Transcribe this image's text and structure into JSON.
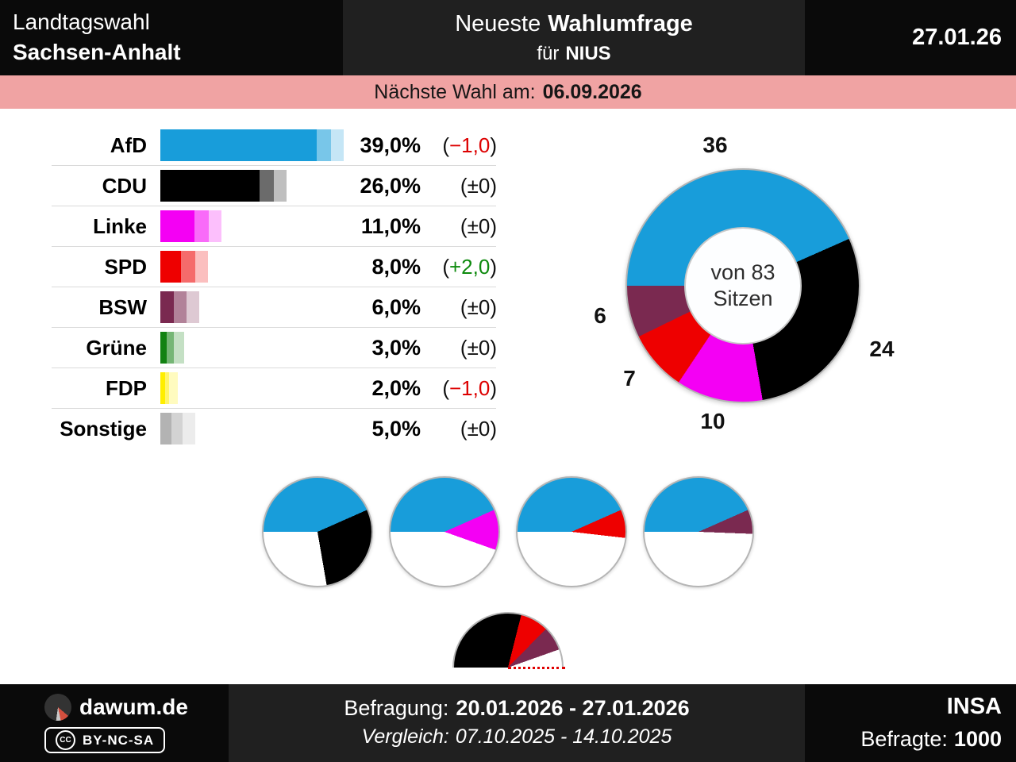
{
  "header": {
    "region_line1": "Landtagswahl",
    "region_line2": "Sachsen-Anhalt",
    "center_prefix": "Neueste",
    "center_bold": "Wahlumfrage",
    "sub_prefix": "für",
    "sub_bold": "NIUS",
    "date": "27.01.26"
  },
  "banner": {
    "label": "Nächste Wahl am:",
    "date": "06.09.2026"
  },
  "chart_data": [
    {
      "type": "bar",
      "categories": [
        "AfD",
        "CDU",
        "Linke",
        "SPD",
        "BSW",
        "Grüne",
        "FDP",
        "Sonstige"
      ],
      "values": [
        39.0,
        26.0,
        11.0,
        8.0,
        6.0,
        3.0,
        2.0,
        5.0
      ],
      "value_labels": [
        "39,0%",
        "26,0%",
        "11,0%",
        "8,0%",
        "6,0%",
        "3,0%",
        "2,0%",
        "5,0%"
      ],
      "changes": [
        {
          "open": "(",
          "value": "−1,0",
          "close": ")",
          "sign": "negative"
        },
        {
          "open": "(",
          "value": "±0",
          "close": ")",
          "sign": "neutral"
        },
        {
          "open": "(",
          "value": "±0",
          "close": ")",
          "sign": "neutral"
        },
        {
          "open": "(",
          "value": "+2,0",
          "close": ")",
          "sign": "positive"
        },
        {
          "open": "(",
          "value": "±0",
          "close": ")",
          "sign": "neutral"
        },
        {
          "open": "(",
          "value": "±0",
          "close": ")",
          "sign": "neutral"
        },
        {
          "open": "(",
          "value": "−1,0",
          "close": ")",
          "sign": "negative"
        },
        {
          "open": "(",
          "value": "±0",
          "close": ")",
          "sign": "neutral"
        }
      ],
      "colors": [
        "#189dda",
        "#000000",
        "#f400f4",
        "#ee0000",
        "#7a2950",
        "#128212",
        "#ffee00",
        "#b3b3b3"
      ],
      "xlim": [
        0,
        40
      ]
    },
    {
      "type": "donut",
      "center_lines": [
        "von 83",
        "Sitzen"
      ],
      "total_seats": 83,
      "parties": [
        "AfD",
        "CDU",
        "Linke",
        "SPD",
        "BSW"
      ],
      "seats": [
        36,
        24,
        10,
        7,
        6
      ],
      "colors": [
        "#189dda",
        "#000000",
        "#f400f4",
        "#ee0000",
        "#7a2950"
      ],
      "start_angle_deg": 270
    },
    {
      "type": "pie-group",
      "total_seats": 83,
      "pies": [
        {
          "parties": [
            "AfD",
            "CDU"
          ],
          "seats": [
            36,
            24
          ],
          "colors": [
            "#189dda",
            "#000000"
          ]
        },
        {
          "parties": [
            "AfD",
            "Linke"
          ],
          "seats": [
            36,
            10
          ],
          "colors": [
            "#189dda",
            "#f400f4"
          ]
        },
        {
          "parties": [
            "AfD",
            "SPD"
          ],
          "seats": [
            36,
            7
          ],
          "colors": [
            "#189dda",
            "#ee0000"
          ]
        },
        {
          "parties": [
            "AfD",
            "BSW"
          ],
          "seats": [
            36,
            6
          ],
          "colors": [
            "#189dda",
            "#7a2950"
          ]
        }
      ]
    },
    {
      "type": "semicircle",
      "parties": [
        "CDU",
        "SPD",
        "BSW"
      ],
      "seats": [
        24,
        7,
        6
      ],
      "colors": [
        "#000000",
        "#ee0000",
        "#7a2950"
      ],
      "half_span_seats": 41.5,
      "majority_marker": true
    }
  ],
  "footer": {
    "brand": "dawum.de",
    "license_icon": "CC",
    "license": "BY-NC-SA",
    "survey_label": "Befragung:",
    "survey_dates": "20.01.2026 - 27.01.2026",
    "comparison_label": "Vergleich:",
    "comparison_dates": "07.10.2025 - 14.10.2025",
    "institute": "INSA",
    "respondents_label": "Befragte:",
    "respondents": "1000"
  },
  "colors": {
    "banner_bg": "#f0a3a3",
    "change_positive": "#0e8a0e",
    "change_negative": "#dd0000",
    "change_neutral": "#111111"
  }
}
